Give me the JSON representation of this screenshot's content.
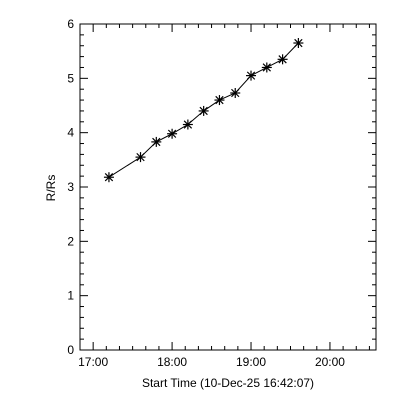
{
  "chart_data": {
    "type": "line",
    "xlabel": "Start Time (10-Dec-25 16:42:07)",
    "ylabel": "R/Rs",
    "xlim": [
      "16:50",
      "20:35"
    ],
    "ylim": [
      0,
      6
    ],
    "x_ticks": [
      "17:00",
      "18:00",
      "19:00",
      "20:00"
    ],
    "y_ticks": [
      "0",
      "1",
      "2",
      "3",
      "4",
      "5",
      "6"
    ],
    "grid": false,
    "marker": "asterisk",
    "series": [
      {
        "x": [
          "17:12",
          "17:36",
          "17:48",
          "18:00",
          "18:12",
          "18:24",
          "18:36",
          "18:48",
          "19:00",
          "19:12",
          "19:24",
          "19:36"
        ],
        "y": [
          3.18,
          3.55,
          3.83,
          3.98,
          4.15,
          4.4,
          4.6,
          4.73,
          5.05,
          5.2,
          5.35,
          5.65
        ]
      }
    ]
  }
}
